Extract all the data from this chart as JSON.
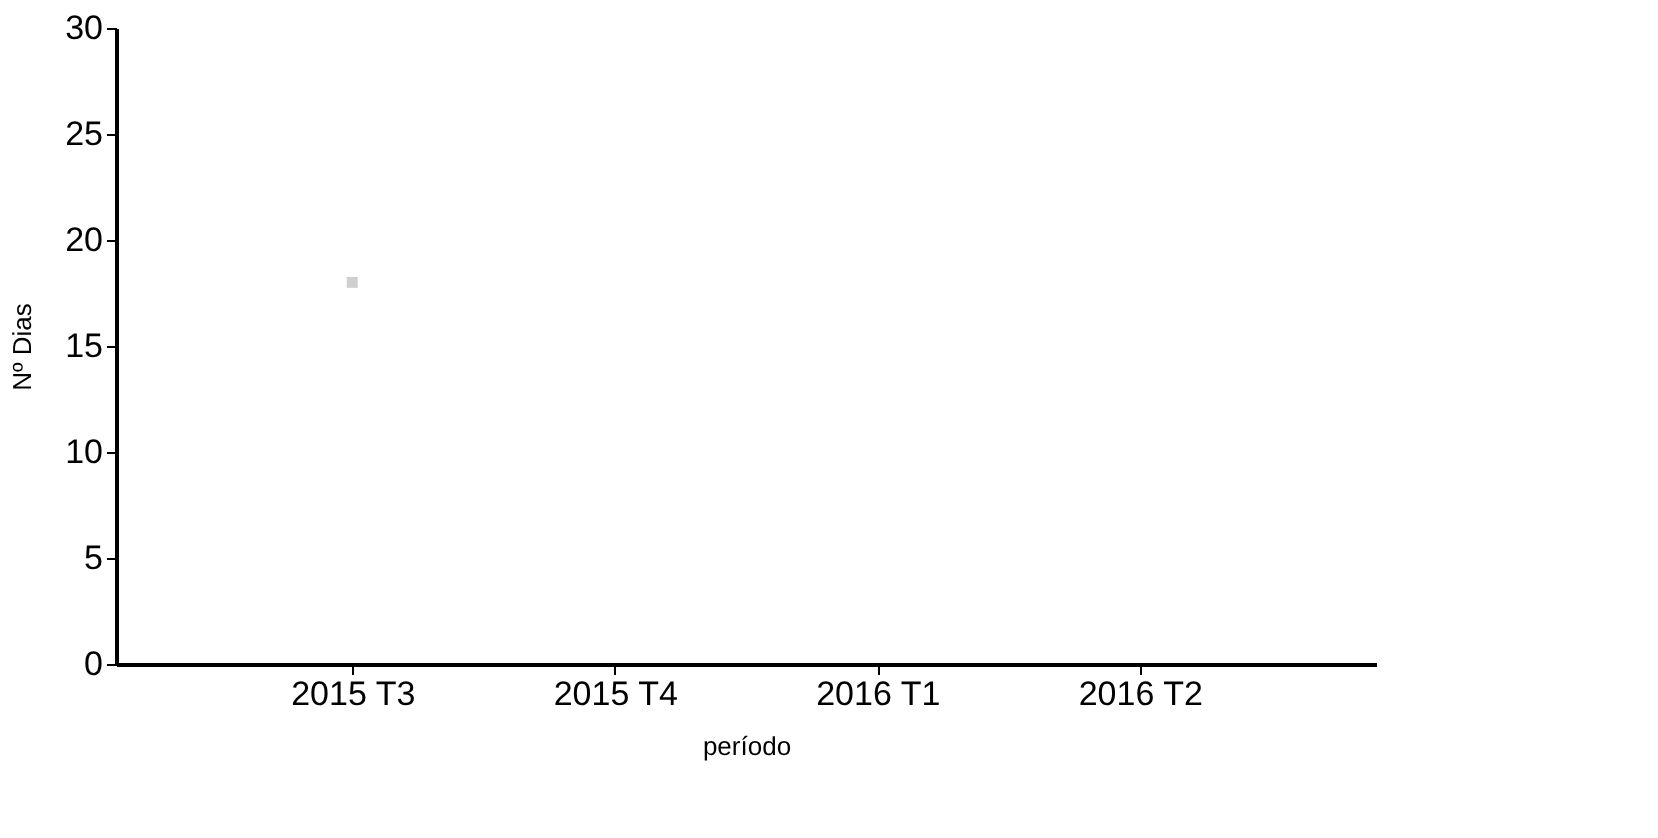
{
  "chart_data": {
    "type": "scatter",
    "xlabel": "período",
    "ylabel": "Nº Dias",
    "categories": [
      "2015 T3",
      "2015 T4",
      "2016 T1",
      "2016 T2"
    ],
    "series": [
      {
        "color": "#cfcfcf",
        "values": [
          18,
          null,
          null,
          null
        ]
      }
    ],
    "ylim": [
      0,
      30
    ],
    "yticks": [
      0,
      5,
      10,
      15,
      20,
      25,
      30
    ],
    "grid": false,
    "marker": "square"
  }
}
